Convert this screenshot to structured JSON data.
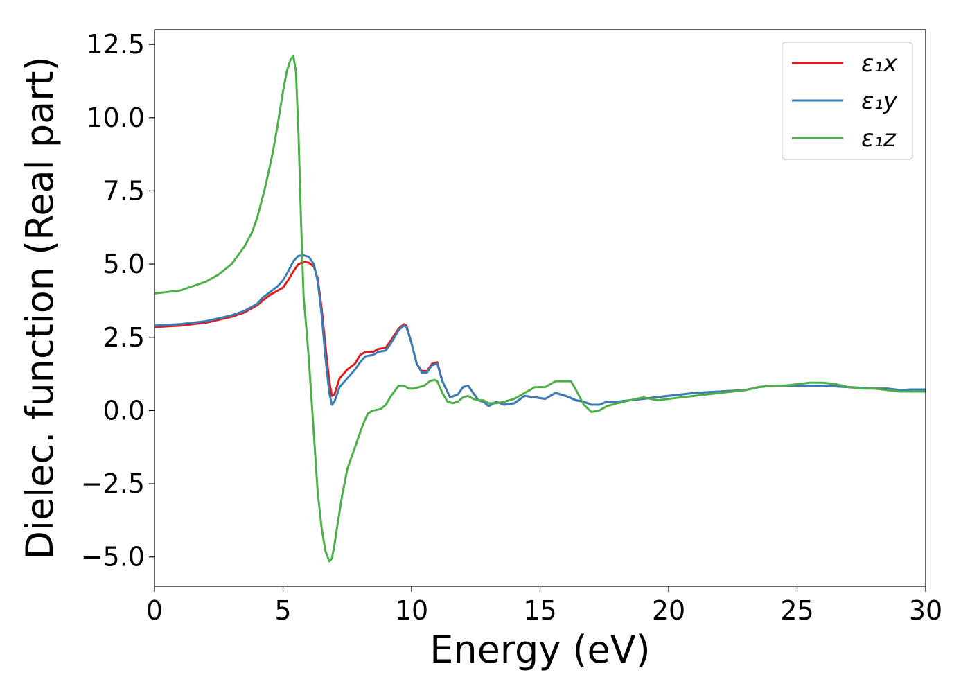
{
  "chart_data": {
    "type": "line",
    "xlabel": "Energy (eV)",
    "ylabel": "Dielec. function (Real part)",
    "xlim": [
      0,
      30
    ],
    "ylim": [
      -6,
      13
    ],
    "xticks": [
      0,
      5,
      10,
      15,
      20,
      25,
      30
    ],
    "xtick_labels": [
      "0",
      "5",
      "10",
      "15",
      "20",
      "25",
      "30"
    ],
    "yticks": [
      -5.0,
      -2.5,
      0.0,
      2.5,
      5.0,
      7.5,
      10.0,
      12.5
    ],
    "ytick_labels": [
      "−5.0",
      "−2.5",
      "0.0",
      "2.5",
      "5.0",
      "7.5",
      "10.0",
      "12.5"
    ],
    "grid": false,
    "legend_position": "top-right",
    "series": [
      {
        "name": "ε₁x",
        "color": "#e41a1c",
        "x": [
          0,
          1,
          2,
          3,
          3.5,
          4,
          4.2,
          4.5,
          4.8,
          5,
          5.2,
          5.4,
          5.6,
          5.8,
          6,
          6.2,
          6.35,
          6.5,
          6.65,
          6.8,
          6.9,
          7,
          7.2,
          7.5,
          7.8,
          8,
          8.2,
          8.5,
          8.7,
          9,
          9.2,
          9.5,
          9.7,
          9.8,
          10,
          10.2,
          10.4,
          10.6,
          10.8,
          11,
          11.2,
          11.5,
          11.8,
          12,
          12.2,
          12.4,
          12.6,
          12.8,
          13,
          13.3,
          13.6,
          14,
          14.4,
          14.8,
          15.2,
          15.6,
          16,
          16.4,
          16.7,
          17,
          17.3,
          17.6,
          18,
          18.5,
          19,
          19.5,
          20,
          20.5,
          21,
          22,
          23,
          23.5,
          24,
          25,
          26,
          27,
          28,
          28.5,
          29,
          29.5,
          30
        ],
        "values": [
          2.85,
          2.9,
          3.0,
          3.2,
          3.35,
          3.6,
          3.75,
          3.95,
          4.1,
          4.2,
          4.45,
          4.75,
          5.0,
          5.07,
          5.05,
          4.92,
          4.5,
          3.5,
          2.2,
          1.0,
          0.5,
          0.55,
          1.1,
          1.4,
          1.6,
          1.9,
          2.0,
          2.0,
          2.1,
          2.15,
          2.4,
          2.8,
          2.95,
          2.9,
          2.3,
          1.6,
          1.35,
          1.35,
          1.6,
          1.65,
          1.0,
          0.45,
          0.55,
          0.8,
          0.85,
          0.6,
          0.35,
          0.3,
          0.15,
          0.3,
          0.2,
          0.25,
          0.5,
          0.45,
          0.4,
          0.6,
          0.5,
          0.35,
          0.3,
          0.2,
          0.2,
          0.3,
          0.3,
          0.35,
          0.4,
          0.45,
          0.5,
          0.55,
          0.6,
          0.65,
          0.7,
          0.8,
          0.85,
          0.85,
          0.85,
          0.8,
          0.75,
          0.75,
          0.7,
          0.72,
          0.72
        ]
      },
      {
        "name": "ε₁y",
        "color": "#377eb8",
        "x": [
          0,
          1,
          2,
          3,
          3.5,
          4,
          4.2,
          4.5,
          4.8,
          5,
          5.2,
          5.4,
          5.6,
          5.8,
          6,
          6.2,
          6.35,
          6.5,
          6.65,
          6.8,
          6.9,
          7,
          7.2,
          7.5,
          7.8,
          8,
          8.2,
          8.5,
          8.7,
          9,
          9.2,
          9.5,
          9.7,
          9.8,
          10,
          10.2,
          10.4,
          10.6,
          10.8,
          11,
          11.2,
          11.5,
          11.8,
          12,
          12.2,
          12.4,
          12.6,
          12.8,
          13,
          13.3,
          13.6,
          14,
          14.4,
          14.8,
          15.2,
          15.6,
          16,
          16.4,
          16.7,
          17,
          17.3,
          17.6,
          18,
          18.5,
          19,
          19.5,
          20,
          20.5,
          21,
          22,
          23,
          23.5,
          24,
          25,
          26,
          27,
          28,
          28.5,
          29,
          29.5,
          30
        ],
        "values": [
          2.9,
          2.95,
          3.05,
          3.25,
          3.4,
          3.65,
          3.85,
          4.05,
          4.25,
          4.45,
          4.75,
          5.1,
          5.28,
          5.3,
          5.25,
          5.0,
          4.4,
          3.3,
          1.8,
          0.6,
          0.2,
          0.3,
          0.8,
          1.1,
          1.4,
          1.65,
          1.85,
          1.9,
          2.0,
          2.05,
          2.3,
          2.75,
          2.9,
          2.85,
          2.3,
          1.6,
          1.3,
          1.3,
          1.55,
          1.6,
          1.0,
          0.45,
          0.55,
          0.8,
          0.85,
          0.6,
          0.35,
          0.3,
          0.15,
          0.3,
          0.2,
          0.25,
          0.5,
          0.45,
          0.4,
          0.6,
          0.5,
          0.35,
          0.3,
          0.2,
          0.2,
          0.3,
          0.3,
          0.35,
          0.4,
          0.45,
          0.5,
          0.55,
          0.6,
          0.65,
          0.7,
          0.8,
          0.85,
          0.85,
          0.85,
          0.8,
          0.75,
          0.75,
          0.7,
          0.72,
          0.72
        ]
      },
      {
        "name": "ε₁z",
        "color": "#4daf4a",
        "x": [
          0,
          1,
          2,
          2.5,
          3,
          3.5,
          3.8,
          4,
          4.3,
          4.6,
          4.8,
          5.0,
          5.15,
          5.3,
          5.4,
          5.5,
          5.6,
          5.7,
          5.8,
          5.9,
          6.0,
          6.1,
          6.2,
          6.35,
          6.5,
          6.65,
          6.8,
          6.9,
          7.0,
          7.1,
          7.3,
          7.5,
          7.7,
          7.9,
          8.1,
          8.3,
          8.5,
          8.8,
          9.0,
          9.2,
          9.5,
          9.7,
          9.9,
          10.1,
          10.3,
          10.5,
          10.7,
          10.9,
          11.0,
          11.2,
          11.4,
          11.6,
          11.8,
          12.0,
          12.2,
          12.4,
          12.6,
          12.8,
          13.0,
          13.3,
          13.6,
          14.0,
          14.4,
          14.8,
          15.2,
          15.6,
          16.0,
          16.2,
          16.4,
          16.7,
          17.0,
          17.3,
          17.6,
          18.0,
          18.5,
          19.0,
          19.3,
          19.6,
          20.0,
          20.5,
          21.0,
          22.0,
          23.0,
          23.5,
          24.0,
          24.5,
          25.0,
          25.5,
          26.0,
          26.5,
          27.0,
          27.5,
          28.0,
          28.5,
          29.0,
          29.5,
          30.0
        ],
        "values": [
          4.0,
          4.1,
          4.4,
          4.65,
          5.0,
          5.6,
          6.1,
          6.6,
          7.6,
          8.8,
          9.8,
          10.9,
          11.6,
          12.0,
          12.1,
          11.6,
          9.5,
          6.5,
          3.9,
          2.9,
          1.8,
          0.5,
          -0.8,
          -2.8,
          -4.0,
          -4.8,
          -5.15,
          -5.05,
          -4.6,
          -4.0,
          -2.9,
          -2.0,
          -1.5,
          -1.0,
          -0.5,
          -0.1,
          0.0,
          0.05,
          0.2,
          0.5,
          0.85,
          0.85,
          0.75,
          0.75,
          0.8,
          0.85,
          1.0,
          1.05,
          1.0,
          0.6,
          0.3,
          0.25,
          0.3,
          0.45,
          0.5,
          0.4,
          0.35,
          0.35,
          0.25,
          0.25,
          0.3,
          0.4,
          0.6,
          0.8,
          0.8,
          1.0,
          1.0,
          1.0,
          0.7,
          0.2,
          -0.05,
          0.0,
          0.15,
          0.25,
          0.35,
          0.45,
          0.4,
          0.35,
          0.4,
          0.45,
          0.5,
          0.6,
          0.7,
          0.8,
          0.85,
          0.85,
          0.9,
          0.95,
          0.95,
          0.9,
          0.8,
          0.75,
          0.75,
          0.7,
          0.65,
          0.65,
          0.65
        ]
      }
    ]
  }
}
